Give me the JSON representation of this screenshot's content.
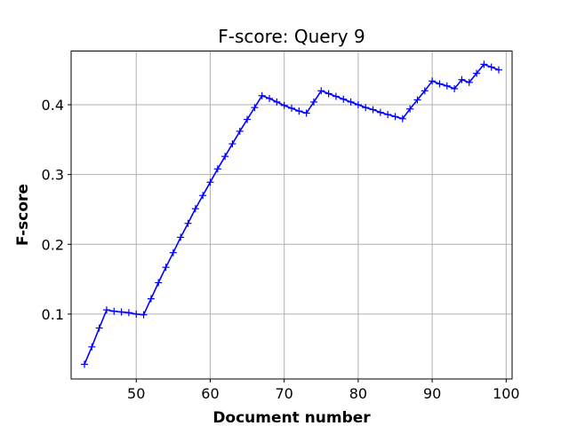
{
  "chart_data": {
    "type": "line",
    "title": "F-score: Query 9",
    "xlabel": "Document number",
    "ylabel": "F-score",
    "xlim": [
      41.2,
      100.8
    ],
    "ylim": [
      0.007,
      0.477
    ],
    "xticks": [
      50,
      60,
      70,
      80,
      90,
      100
    ],
    "yticks": [
      0.1,
      0.2,
      0.3,
      0.4
    ],
    "grid": true,
    "line_color": "#0000ff",
    "marker": "plus",
    "series": [
      {
        "name": "",
        "x": [
          43,
          44,
          45,
          46,
          47,
          48,
          49,
          50,
          51,
          52,
          53,
          54,
          55,
          56,
          57,
          58,
          59,
          60,
          61,
          62,
          63,
          64,
          65,
          66,
          67,
          68,
          69,
          70,
          71,
          72,
          73,
          74,
          75,
          76,
          77,
          78,
          79,
          80,
          81,
          82,
          83,
          84,
          85,
          86,
          87,
          88,
          89,
          90,
          91,
          92,
          93,
          94,
          95,
          96,
          97,
          98,
          99
        ],
        "y": [
          0.028,
          0.053,
          0.08,
          0.106,
          0.104,
          0.103,
          0.102,
          0.1,
          0.099,
          0.122,
          0.145,
          0.167,
          0.188,
          0.21,
          0.23,
          0.251,
          0.27,
          0.289,
          0.308,
          0.326,
          0.344,
          0.362,
          0.379,
          0.396,
          0.413,
          0.409,
          0.404,
          0.399,
          0.395,
          0.391,
          0.388,
          0.404,
          0.42,
          0.416,
          0.412,
          0.408,
          0.404,
          0.4,
          0.396,
          0.393,
          0.389,
          0.386,
          0.383,
          0.38,
          0.394,
          0.407,
          0.42,
          0.434,
          0.43,
          0.427,
          0.423,
          0.436,
          0.432,
          0.445,
          0.458,
          0.454,
          0.45
        ]
      }
    ]
  }
}
